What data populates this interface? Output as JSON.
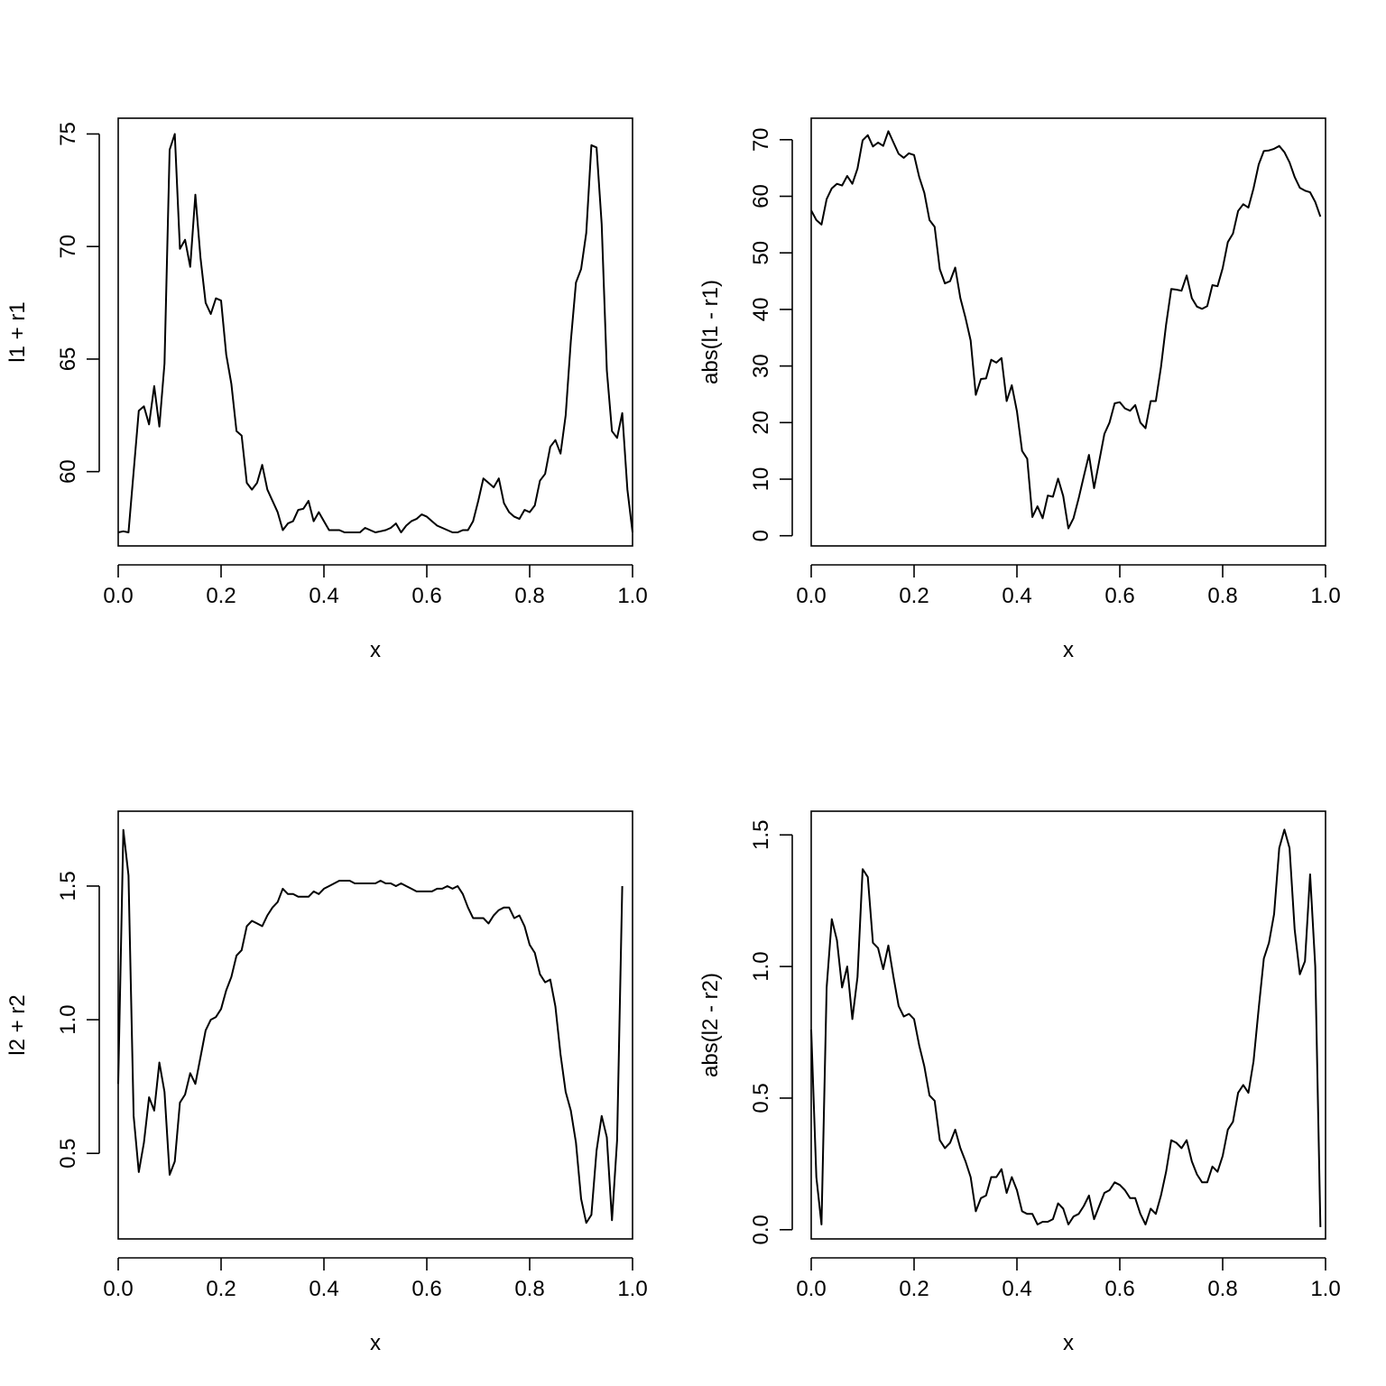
{
  "chart_data": [
    {
      "type": "line",
      "title": "",
      "xlabel": "x",
      "ylabel": "l1 + r1",
      "xlim": [
        0,
        1
      ],
      "ylim": [
        56.7,
        75.7
      ],
      "xticks": [
        0.0,
        0.2,
        0.4,
        0.6,
        0.8,
        1.0
      ],
      "xtick_labels": [
        "0.0",
        "0.2",
        "0.4",
        "0.6",
        "0.8",
        "1.0"
      ],
      "yticks": [
        60,
        65,
        70,
        75
      ],
      "ytick_labels": [
        "60",
        "65",
        "70",
        "75"
      ],
      "grid": false,
      "x_start": 0,
      "x_step": 0.01,
      "values": [
        57.3,
        57.35,
        57.3,
        60.0,
        62.7,
        62.9,
        62.1,
        63.8,
        62.0,
        64.8,
        74.3,
        75.0,
        69.9,
        70.3,
        69.1,
        72.3,
        69.5,
        67.5,
        67.0,
        67.7,
        67.6,
        65.2,
        63.9,
        61.8,
        61.6,
        59.5,
        59.2,
        59.5,
        60.3,
        59.2,
        58.7,
        58.2,
        57.4,
        57.7,
        57.8,
        58.3,
        58.35,
        58.7,
        57.8,
        58.2,
        57.8,
        57.4,
        57.4,
        57.4,
        57.3,
        57.3,
        57.3,
        57.3,
        57.5,
        57.4,
        57.3,
        57.35,
        57.4,
        57.5,
        57.7,
        57.3,
        57.6,
        57.8,
        57.9,
        58.1,
        58.0,
        57.8,
        57.6,
        57.5,
        57.4,
        57.3,
        57.3,
        57.4,
        57.4,
        57.8,
        58.7,
        59.7,
        59.5,
        59.3,
        59.7,
        58.6,
        58.2,
        58.0,
        57.9,
        58.3,
        58.2,
        58.5,
        59.6,
        59.9,
        61.1,
        61.4,
        60.8,
        62.5,
        65.8,
        68.4,
        69.0,
        70.6,
        74.5,
        74.4,
        71.0,
        64.5,
        61.8,
        61.5,
        62.6,
        59.2,
        57.3
      ]
    },
    {
      "type": "line",
      "title": "",
      "xlabel": "x",
      "ylabel": "abs(l1 - r1)",
      "xlim": [
        0,
        1
      ],
      "ylim": [
        -1.8,
        73.8
      ],
      "xticks": [
        0.0,
        0.2,
        0.4,
        0.6,
        0.8,
        1.0
      ],
      "xtick_labels": [
        "0.0",
        "0.2",
        "0.4",
        "0.6",
        "0.8",
        "1.0"
      ],
      "yticks": [
        0,
        10,
        20,
        30,
        40,
        50,
        60,
        70
      ],
      "ytick_labels": [
        "0",
        "10",
        "20",
        "30",
        "40",
        "50",
        "60",
        "70"
      ],
      "grid": false,
      "x_start": 0,
      "x_step": 0.01,
      "values": [
        57.5,
        55.8,
        55.0,
        59.5,
        61.4,
        62.2,
        61.9,
        63.6,
        62.2,
        64.9,
        69.9,
        70.8,
        68.8,
        69.5,
        68.9,
        71.5,
        69.5,
        67.5,
        66.8,
        67.6,
        67.3,
        63.4,
        60.6,
        55.8,
        54.6,
        47.1,
        44.6,
        45.0,
        47.4,
        42.0,
        38.5,
        34.5,
        24.9,
        27.7,
        27.8,
        31.1,
        30.6,
        31.4,
        23.8,
        26.6,
        22.0,
        15.0,
        13.6,
        3.3,
        5.2,
        3.1,
        7.1,
        6.9,
        10.1,
        7.0,
        1.3,
        3.1,
        6.6,
        10.5,
        14.3,
        8.4,
        13.2,
        18.0,
        20.0,
        23.4,
        23.6,
        22.5,
        22.1,
        23.1,
        20.0,
        19.0,
        23.8,
        23.8,
        29.8,
        37.3,
        43.6,
        43.5,
        43.3,
        46.0,
        42.0,
        40.5,
        40.1,
        40.6,
        44.3,
        44.1,
        47.3,
        51.9,
        53.4,
        57.4,
        58.6,
        58.0,
        61.4,
        65.6,
        68.0,
        68.1,
        68.4,
        68.9,
        67.8,
        66.0,
        63.4,
        61.5,
        61.0,
        60.7,
        59.0,
        56.4
      ]
    },
    {
      "type": "line",
      "title": "",
      "xlabel": "x",
      "ylabel": "l2 + r2",
      "xlim": [
        0,
        1
      ],
      "ylim": [
        0.18,
        1.78
      ],
      "xticks": [
        0.0,
        0.2,
        0.4,
        0.6,
        0.8,
        1.0
      ],
      "xtick_labels": [
        "0.0",
        "0.2",
        "0.4",
        "0.6",
        "0.8",
        "1.0"
      ],
      "yticks": [
        0.5,
        1.0,
        1.5
      ],
      "ytick_labels": [
        "0.5",
        "1.0",
        "1.5"
      ],
      "grid": false,
      "x_start": 0,
      "x_step": 0.01,
      "values": [
        0.76,
        1.71,
        1.54,
        0.64,
        0.43,
        0.54,
        0.71,
        0.66,
        0.84,
        0.73,
        0.42,
        0.47,
        0.69,
        0.72,
        0.8,
        0.76,
        0.86,
        0.96,
        1.0,
        1.01,
        1.04,
        1.11,
        1.16,
        1.24,
        1.26,
        1.35,
        1.37,
        1.36,
        1.35,
        1.39,
        1.42,
        1.44,
        1.49,
        1.47,
        1.47,
        1.46,
        1.46,
        1.46,
        1.48,
        1.47,
        1.49,
        1.5,
        1.51,
        1.52,
        1.52,
        1.52,
        1.51,
        1.51,
        1.51,
        1.51,
        1.51,
        1.52,
        1.51,
        1.51,
        1.5,
        1.51,
        1.5,
        1.49,
        1.48,
        1.48,
        1.48,
        1.48,
        1.49,
        1.49,
        1.5,
        1.49,
        1.5,
        1.47,
        1.42,
        1.38,
        1.38,
        1.38,
        1.36,
        1.39,
        1.41,
        1.42,
        1.42,
        1.38,
        1.39,
        1.35,
        1.28,
        1.25,
        1.17,
        1.14,
        1.15,
        1.05,
        0.87,
        0.73,
        0.66,
        0.54,
        0.33,
        0.24,
        0.27,
        0.51,
        0.64,
        0.56,
        0.25,
        0.55,
        1.5
      ]
    },
    {
      "type": "line",
      "title": "",
      "xlabel": "x",
      "ylabel": "abs(l2 - r2)",
      "xlim": [
        0,
        1
      ],
      "ylim": [
        -0.035,
        1.59
      ],
      "xticks": [
        0.0,
        0.2,
        0.4,
        0.6,
        0.8,
        1.0
      ],
      "xtick_labels": [
        "0.0",
        "0.2",
        "0.4",
        "0.6",
        "0.8",
        "1.0"
      ],
      "yticks": [
        0.0,
        0.5,
        1.0,
        1.5
      ],
      "ytick_labels": [
        "0.0",
        "0.5",
        "1.0",
        "1.5"
      ],
      "grid": false,
      "x_start": 0,
      "x_step": 0.01,
      "values": [
        0.76,
        0.2,
        0.02,
        0.92,
        1.18,
        1.1,
        0.92,
        1.0,
        0.8,
        0.96,
        1.37,
        1.34,
        1.09,
        1.07,
        0.99,
        1.08,
        0.96,
        0.85,
        0.81,
        0.82,
        0.8,
        0.7,
        0.62,
        0.51,
        0.49,
        0.34,
        0.31,
        0.33,
        0.38,
        0.31,
        0.26,
        0.2,
        0.07,
        0.12,
        0.13,
        0.2,
        0.2,
        0.23,
        0.14,
        0.2,
        0.15,
        0.07,
        0.06,
        0.06,
        0.02,
        0.03,
        0.03,
        0.04,
        0.1,
        0.08,
        0.02,
        0.05,
        0.06,
        0.09,
        0.13,
        0.04,
        0.09,
        0.14,
        0.15,
        0.18,
        0.17,
        0.15,
        0.12,
        0.12,
        0.06,
        0.02,
        0.08,
        0.06,
        0.13,
        0.22,
        0.34,
        0.33,
        0.31,
        0.34,
        0.26,
        0.21,
        0.18,
        0.18,
        0.24,
        0.22,
        0.28,
        0.38,
        0.41,
        0.52,
        0.55,
        0.52,
        0.64,
        0.84,
        1.03,
        1.09,
        1.2,
        1.45,
        1.52,
        1.45,
        1.14,
        0.97,
        1.02,
        1.35,
        1.0,
        0.01
      ]
    }
  ]
}
